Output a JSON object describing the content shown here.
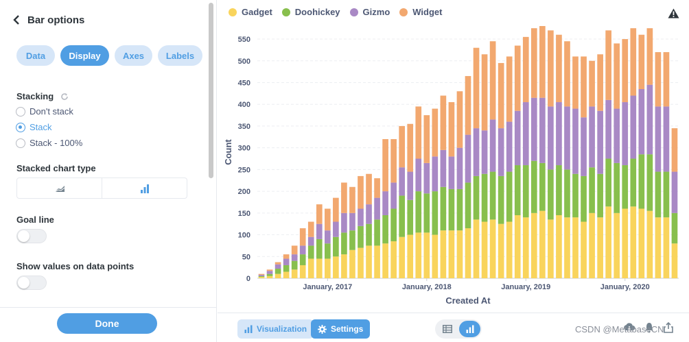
{
  "left_panel": {
    "header": {
      "title": "Bar options"
    },
    "tabs": [
      {
        "label": "Data",
        "active": false
      },
      {
        "label": "Display",
        "active": true
      },
      {
        "label": "Axes",
        "active": false
      },
      {
        "label": "Labels",
        "active": false
      }
    ],
    "stacking": {
      "label": "Stacking",
      "options": [
        {
          "label": "Don't stack",
          "checked": false
        },
        {
          "label": "Stack",
          "checked": true
        },
        {
          "label": "Stack - 100%",
          "checked": false
        }
      ]
    },
    "stacked_chart_type": {
      "label": "Stacked chart type",
      "options": [
        "area-icon",
        "bar-icon"
      ],
      "selected": "bar-icon"
    },
    "goal_line": {
      "label": "Goal line",
      "enabled": false
    },
    "show_values": {
      "label": "Show values on data points",
      "enabled": false
    },
    "done_label": "Done"
  },
  "legend": [
    {
      "name": "Gadget",
      "color": "#F9D45C"
    },
    {
      "name": "Doohickey",
      "color": "#88BF4D"
    },
    {
      "name": "Gizmo",
      "color": "#A989C5"
    },
    {
      "name": "Widget",
      "color": "#F2A86F"
    }
  ],
  "footer": {
    "visualization_label": "Visualization",
    "settings_label": "Settings",
    "watermark": "CSDN @MetabaseCN"
  },
  "chart_data": {
    "type": "bar",
    "stacked": true,
    "xlabel": "Created At",
    "ylabel": "Count",
    "ylim": [
      0,
      580
    ],
    "yticks": [
      0,
      50,
      100,
      150,
      200,
      250,
      300,
      350,
      400,
      450,
      500,
      550
    ],
    "xticks": [
      {
        "label": "January, 2017",
        "index": 8
      },
      {
        "label": "January, 2018",
        "index": 20
      },
      {
        "label": "January, 2019",
        "index": 32
      },
      {
        "label": "January, 2020",
        "index": 44
      }
    ],
    "series": [
      {
        "name": "Gadget",
        "color": "#F9D45C",
        "values": [
          3,
          5,
          10,
          15,
          20,
          30,
          45,
          45,
          45,
          50,
          55,
          65,
          70,
          75,
          75,
          80,
          85,
          95,
          100,
          105,
          105,
          100,
          110,
          110,
          110,
          115,
          135,
          130,
          135,
          125,
          130,
          145,
          140,
          150,
          155,
          135,
          145,
          140,
          140,
          130,
          150,
          140,
          165,
          150,
          160,
          165,
          160,
          155,
          140,
          140,
          80
        ]
      },
      {
        "name": "Doohickey",
        "color": "#88BF4D",
        "values": [
          2,
          5,
          12,
          15,
          20,
          25,
          30,
          45,
          35,
          45,
          50,
          45,
          50,
          50,
          60,
          65,
          75,
          95,
          80,
          95,
          90,
          100,
          100,
          95,
          95,
          105,
          100,
          110,
          110,
          110,
          115,
          115,
          120,
          120,
          110,
          115,
          115,
          110,
          100,
          105,
          105,
          100,
          110,
          115,
          100,
          110,
          125,
          130,
          105,
          105,
          70
        ]
      },
      {
        "name": "Gizmo",
        "color": "#A989C5",
        "values": [
          3,
          7,
          10,
          15,
          15,
          20,
          20,
          35,
          30,
          35,
          45,
          40,
          40,
          45,
          50,
          55,
          60,
          65,
          65,
          75,
          70,
          80,
          85,
          75,
          95,
          110,
          110,
          100,
          120,
          110,
          115,
          125,
          145,
          145,
          150,
          145,
          145,
          145,
          150,
          135,
          140,
          145,
          135,
          125,
          145,
          145,
          150,
          160,
          150,
          150,
          95
        ]
      },
      {
        "name": "Widget",
        "color": "#F2A86F",
        "values": [
          2,
          3,
          5,
          10,
          20,
          40,
          35,
          45,
          50,
          55,
          70,
          60,
          75,
          70,
          45,
          120,
          100,
          95,
          110,
          120,
          110,
          110,
          125,
          125,
          130,
          135,
          185,
          175,
          180,
          150,
          150,
          150,
          150,
          160,
          165,
          175,
          155,
          150,
          120,
          140,
          105,
          130,
          160,
          150,
          145,
          155,
          125,
          130,
          125,
          125,
          100
        ]
      }
    ]
  }
}
